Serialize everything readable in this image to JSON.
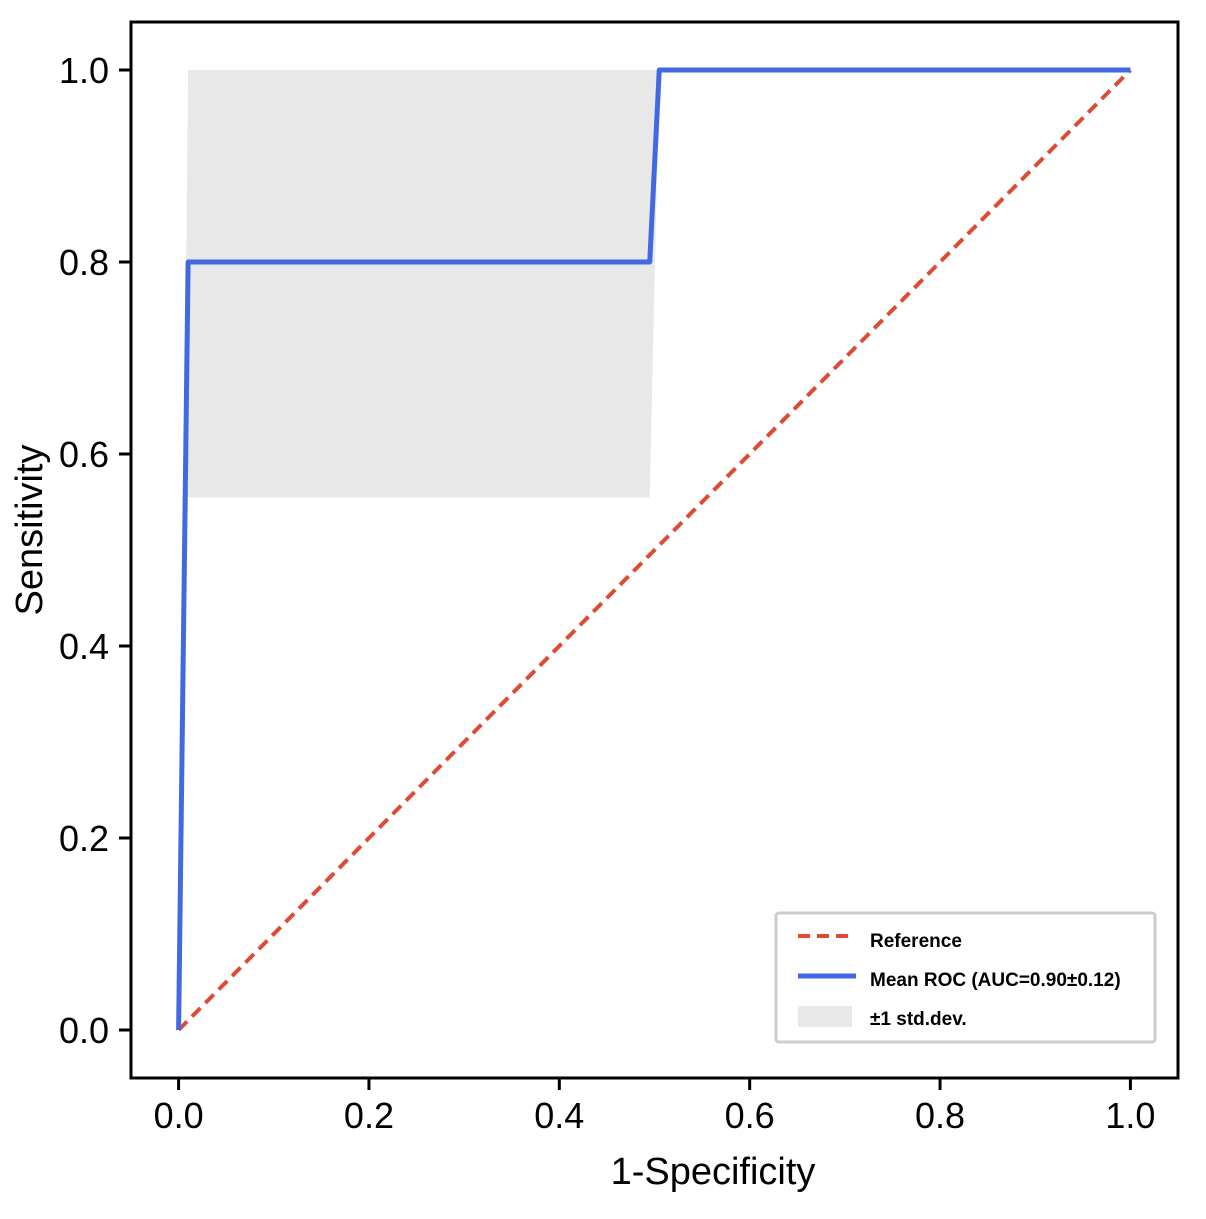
{
  "chart_data": {
    "type": "line",
    "title": "",
    "xlabel": "1-Specificity",
    "ylabel": "Sensitivity",
    "xlim": [
      -0.05,
      1.05
    ],
    "ylim": [
      -0.05,
      1.05
    ],
    "x_ticks": [
      0.0,
      0.2,
      0.4,
      0.6,
      0.8,
      1.0
    ],
    "y_ticks": [
      0.0,
      0.2,
      0.4,
      0.6,
      0.8,
      1.0
    ],
    "x_tick_labels": [
      "0.0",
      "0.2",
      "0.4",
      "0.6",
      "0.8",
      "1.0"
    ],
    "y_tick_labels": [
      "0.0",
      "0.2",
      "0.4",
      "0.6",
      "0.8",
      "1.0"
    ],
    "grid": false,
    "legend_position": "bottom-right",
    "series": [
      {
        "name": "Reference",
        "style": "dashed",
        "color": "#de4b35",
        "x": [
          0.0,
          1.0
        ],
        "y": [
          0.0,
          1.0
        ]
      },
      {
        "name": "Mean  ROC (AUC=0.90±0.12)",
        "style": "solid",
        "color": "#4169e1",
        "x": [
          0.0,
          0.01,
          0.495,
          0.505,
          1.0
        ],
        "y": [
          0.0,
          0.8,
          0.8,
          1.0,
          1.0
        ]
      }
    ],
    "band": {
      "name": "±1 std.dev.",
      "color": "#e8e8e8",
      "x": [
        0.0,
        0.01,
        0.495,
        0.505,
        1.0
      ],
      "upper": [
        0.0,
        1.0,
        1.0,
        1.0,
        1.0
      ],
      "lower": [
        0.0,
        0.555,
        0.555,
        1.0,
        1.0
      ]
    }
  }
}
